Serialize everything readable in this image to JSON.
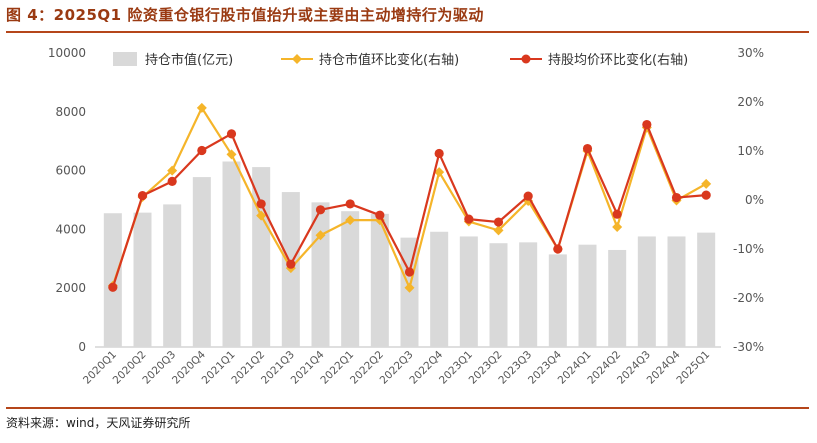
{
  "title": "图 4：2025Q1 险资重仓银行股市值抬升或主要由主动增持行为驱动",
  "source": "资料来源：wind，天风证券研究所",
  "chart_data": {
    "type": "bar+line",
    "categories": [
      "2020Q1",
      "2020Q2",
      "2020Q3",
      "2020Q4",
      "2021Q1",
      "2021Q2",
      "2021Q3",
      "2021Q4",
      "2022Q1",
      "2022Q2",
      "2022Q3",
      "2022Q4",
      "2023Q1",
      "2023Q2",
      "2023Q3",
      "2023Q4",
      "2024Q1",
      "2024Q2",
      "2024Q3",
      "2024Q4",
      "2025Q1"
    ],
    "left_axis": {
      "min": 0,
      "max": 10000,
      "ticks": [
        "0",
        "2000",
        "4000",
        "6000",
        "8000",
        "10000"
      ]
    },
    "right_axis": {
      "min": -30,
      "max": 30,
      "ticks": [
        "-30%",
        "-20%",
        "-10%",
        "0%",
        "10%",
        "20%",
        "30%"
      ]
    },
    "series": [
      {
        "name": "持仓市值(亿元)",
        "type": "bar",
        "axis": "left",
        "color": "#d9d9d9",
        "values": [
          4550,
          4570,
          4850,
          5780,
          6310,
          6120,
          5270,
          4920,
          4620,
          4530,
          3720,
          3920,
          3760,
          3530,
          3560,
          3150,
          3480,
          3300,
          3760,
          3760,
          3890
        ]
      },
      {
        "name": "持仓市值环比变化(右轴)",
        "type": "line",
        "axis": "right",
        "color": "#f5b52a",
        "values": [
          -17.5,
          0.6,
          6.0,
          18.8,
          9.3,
          -3.2,
          -13.9,
          -7.2,
          -4.1,
          -4.1,
          -17.9,
          5.7,
          -4.4,
          -6.2,
          -0.2,
          -10.0,
          10.0,
          -5.5,
          14.8,
          -0.1,
          3.3
        ]
      },
      {
        "name": "持股均价环比变化(右轴)",
        "type": "line",
        "axis": "right",
        "color": "#d9381e",
        "values": [
          -17.8,
          0.9,
          3.8,
          10.1,
          13.5,
          -0.8,
          -13.1,
          -2.0,
          -0.8,
          -3.1,
          -14.7,
          9.5,
          -3.9,
          -4.5,
          0.8,
          -10.0,
          10.5,
          -2.9,
          15.4,
          0.5,
          1.0
        ]
      }
    ]
  }
}
